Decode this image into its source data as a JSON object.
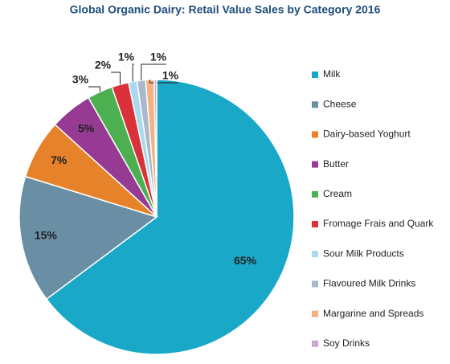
{
  "chart_data": {
    "type": "pie",
    "title": "Global Organic Dairy: Retail Value Sales by Category 2016",
    "categories": [
      "Milk",
      "Cheese",
      "Dairy-based Yoghurt",
      "Butter",
      "Cream",
      "Fromage Frais and Quark",
      "Sour Milk Products",
      "Flavoured Milk Drinks",
      "Margarine and Spreads",
      "Soy Drinks"
    ],
    "values": [
      65,
      15,
      7,
      5,
      3,
      2,
      1,
      1,
      1,
      0.3
    ],
    "value_labels": [
      "65%",
      "15%",
      "7%",
      "5%",
      "3%",
      "2%",
      "1%",
      "1%",
      "1%",
      null
    ],
    "colors": [
      "#19a8c7",
      "#6a8ea3",
      "#e6832a",
      "#963a93",
      "#4caf50",
      "#d9303a",
      "#a9d9ee",
      "#a9b9cc",
      "#f4b183",
      "#c9a6cf"
    ],
    "legend": "right"
  }
}
